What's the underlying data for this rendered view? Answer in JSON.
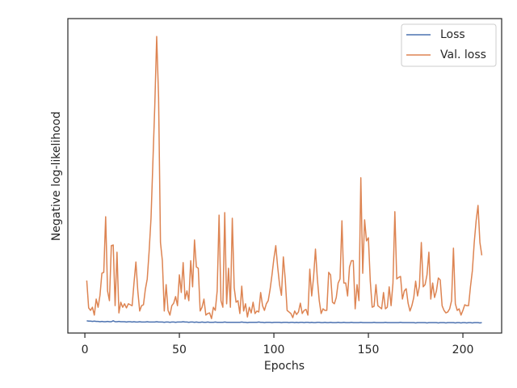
{
  "chart_data": {
    "type": "line",
    "xlabel": "Epochs",
    "ylabel": "Negative log-likelihood",
    "xlim": [
      -9,
      220.5
    ],
    "xticks": [
      0,
      50,
      100,
      150,
      200
    ],
    "ylim": [
      0,
      100
    ],
    "legend": "upper right",
    "x": [
      1,
      2,
      3,
      4,
      5,
      6,
      7,
      8,
      9,
      10,
      11,
      12,
      13,
      14,
      15,
      16,
      17,
      18,
      19,
      20,
      21,
      22,
      23,
      24,
      25,
      26,
      27,
      28,
      29,
      30,
      31,
      32,
      33,
      34,
      35,
      36,
      37,
      38,
      39,
      40,
      41,
      42,
      43,
      44,
      45,
      46,
      47,
      48,
      49,
      50,
      51,
      52,
      53,
      54,
      55,
      56,
      57,
      58,
      59,
      60,
      61,
      62,
      63,
      64,
      65,
      66,
      67,
      68,
      69,
      70,
      71,
      72,
      73,
      74,
      75,
      76,
      77,
      78,
      79,
      80,
      81,
      82,
      83,
      84,
      85,
      86,
      87,
      88,
      89,
      90,
      91,
      92,
      93,
      94,
      95,
      96,
      97,
      98,
      99,
      100,
      101,
      102,
      103,
      104,
      105,
      106,
      107,
      108,
      109,
      110,
      111,
      112,
      113,
      114,
      115,
      116,
      117,
      118,
      119,
      120,
      121,
      122,
      123,
      124,
      125,
      126,
      127,
      128,
      129,
      130,
      131,
      132,
      133,
      134,
      135,
      136,
      137,
      138,
      139,
      140,
      141,
      142,
      143,
      144,
      145,
      146,
      147,
      148,
      149,
      150,
      151,
      152,
      153,
      154,
      155,
      156,
      157,
      158,
      159,
      160,
      161,
      162,
      163,
      164,
      165,
      166,
      167,
      168,
      169,
      170,
      171,
      172,
      173,
      174,
      175,
      176,
      177,
      178,
      179,
      180,
      181,
      182,
      183,
      184,
      185,
      186,
      187,
      188,
      189,
      190,
      191,
      192,
      193,
      194,
      195,
      196,
      197,
      198,
      199,
      200,
      201,
      202,
      203,
      204,
      205,
      206,
      207,
      208,
      209,
      210
    ],
    "series": [
      {
        "name": "Loss",
        "color": "#4c72b0",
        "values": [
          3.9,
          3.8,
          3.8,
          3.7,
          3.8,
          3.7,
          3.7,
          3.6,
          3.7,
          3.6,
          3.6,
          3.7,
          3.6,
          3.6,
          3.9,
          3.6,
          3.6,
          3.7,
          3.6,
          3.6,
          3.6,
          3.5,
          3.6,
          3.6,
          3.5,
          3.6,
          3.5,
          3.5,
          3.6,
          3.5,
          3.5,
          3.5,
          3.6,
          3.5,
          3.5,
          3.5,
          3.5,
          3.6,
          3.5,
          3.5,
          3.5,
          3.4,
          3.5,
          3.5,
          3.4,
          3.5,
          3.5,
          3.4,
          3.5,
          3.5,
          3.5,
          3.6,
          3.5,
          3.5,
          3.4,
          3.5,
          3.5,
          3.4,
          3.5,
          3.4,
          3.4,
          3.5,
          3.4,
          3.4,
          3.5,
          3.4,
          3.4,
          3.4,
          3.5,
          3.4,
          3.4,
          3.4,
          3.4,
          3.5,
          3.4,
          3.4,
          3.4,
          3.4,
          3.4,
          3.4,
          3.4,
          3.4,
          3.5,
          3.4,
          3.4,
          3.3,
          3.4,
          3.4,
          3.4,
          3.4,
          3.4,
          3.5,
          3.4,
          3.4,
          3.3,
          3.4,
          3.4,
          3.4,
          3.3,
          3.4,
          3.4,
          3.4,
          3.4,
          3.3,
          3.4,
          3.4,
          3.4,
          3.3,
          3.4,
          3.4,
          3.3,
          3.4,
          3.3,
          3.4,
          3.4,
          3.3,
          3.4,
          3.4,
          3.3,
          3.4,
          3.3,
          3.3,
          3.4,
          3.4,
          3.3,
          3.3,
          3.4,
          3.3,
          3.3,
          3.4,
          3.3,
          3.3,
          3.3,
          3.4,
          3.3,
          3.3,
          3.4,
          3.3,
          3.3,
          3.3,
          3.4,
          3.3,
          3.3,
          3.3,
          3.3,
          3.4,
          3.3,
          3.3,
          3.3,
          3.3,
          3.3,
          3.3,
          3.4,
          3.3,
          3.3,
          3.3,
          3.3,
          3.3,
          3.4,
          3.3,
          3.3,
          3.3,
          3.3,
          3.3,
          3.3,
          3.3,
          3.4,
          3.3,
          3.3,
          3.3,
          3.3,
          3.3,
          3.3,
          3.3,
          3.2,
          3.3,
          3.3,
          3.3,
          3.3,
          3.3,
          3.2,
          3.3,
          3.3,
          3.3,
          3.3,
          3.3,
          3.2,
          3.3,
          3.3,
          3.3,
          3.2,
          3.3,
          3.3,
          3.3,
          3.3,
          3.2,
          3.3,
          3.3,
          3.2,
          3.3,
          3.3,
          3.2,
          3.3,
          3.3,
          3.2,
          3.3,
          3.3,
          3.3,
          3.2,
          3.3
        ]
      },
      {
        "name": "Val. loss",
        "color": "#dd8452",
        "values": [
          16.7,
          8,
          7.2,
          8.2,
          5.7,
          10.8,
          8.2,
          12,
          19,
          19.3,
          37,
          13.4,
          10.3,
          27.8,
          28,
          8.7,
          25.7,
          6.4,
          9.8,
          8.2,
          9.3,
          8,
          9.3,
          9,
          8.7,
          16,
          22.6,
          13.4,
          7,
          8.7,
          9,
          13.9,
          17.2,
          26,
          36.5,
          54.5,
          72.5,
          94.3,
          75,
          28.8,
          23,
          7,
          15.4,
          7.2,
          5.7,
          8.7,
          9.5,
          11.6,
          8.7,
          18.5,
          12.9,
          22.4,
          10.8,
          13.4,
          10.3,
          23,
          14.7,
          29.6,
          21,
          20.6,
          7,
          8.2,
          10.8,
          5.7,
          6.2,
          6.4,
          4.6,
          8.2,
          7.2,
          13.4,
          37.5,
          10.3,
          8.2,
          38.3,
          9.3,
          20.6,
          8.2,
          36.5,
          14.4,
          9.8,
          10.3,
          6.2,
          14.9,
          7,
          9.3,
          5.1,
          8.2,
          6.4,
          9.8,
          6.2,
          7,
          6.7,
          12.9,
          8.7,
          7.2,
          9.3,
          10.3,
          13.9,
          18.5,
          23.7,
          27.8,
          21,
          15.4,
          12,
          24.2,
          17.2,
          7.2,
          6.7,
          6.2,
          4.9,
          7,
          5.9,
          6.7,
          9.5,
          6.2,
          7.2,
          7.5,
          5.7,
          20.3,
          11.8,
          17.7,
          26.7,
          17.2,
          10.3,
          6.2,
          7.7,
          7.2,
          7.2,
          19.3,
          18.5,
          9.8,
          9.3,
          11.3,
          15.9,
          17.2,
          35.7,
          15.9,
          15.9,
          11.8,
          21,
          23,
          23,
          7.7,
          15.4,
          10.3,
          49.4,
          19,
          36,
          29.3,
          30.3,
          16.5,
          8.2,
          8.5,
          15.4,
          8.7,
          8.2,
          7.7,
          12.9,
          7.7,
          8.2,
          14.7,
          8.7,
          15.9,
          38.6,
          17.2,
          17.7,
          18,
          10.8,
          13.4,
          14.1,
          9.5,
          7,
          8.7,
          11.3,
          16.5,
          11.8,
          14.9,
          28.8,
          14.7,
          15.4,
          18.5,
          25.7,
          10.8,
          15.9,
          11.3,
          13.4,
          17.5,
          16.9,
          8.7,
          7.2,
          6.4,
          6.7,
          7.7,
          10.3,
          27,
          9.3,
          7.2,
          7.7,
          5.7,
          7.2,
          9,
          8.7,
          8.7,
          14.7,
          19.8,
          28.8,
          35.7,
          40.6,
          28.8,
          24.7
        ]
      }
    ]
  }
}
